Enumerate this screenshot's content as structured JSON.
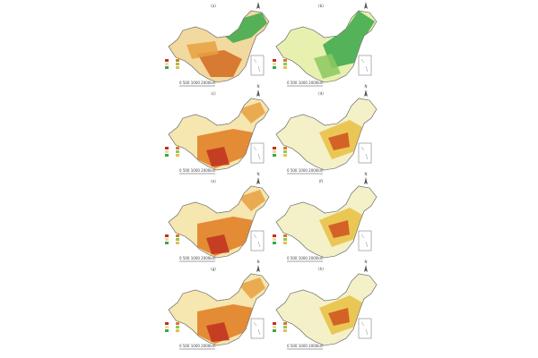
{
  "figure": {
    "panels": [
      {
        "label": "(a)"
      },
      {
        "label": "(b)"
      },
      {
        "label": "(c)"
      },
      {
        "label": "(d)"
      },
      {
        "label": "(e)"
      },
      {
        "label": "(f)"
      },
      {
        "label": "(g)"
      },
      {
        "label": "(h)"
      }
    ],
    "scale_label": "0  500  1000  2000km",
    "north_label": "N"
  }
}
